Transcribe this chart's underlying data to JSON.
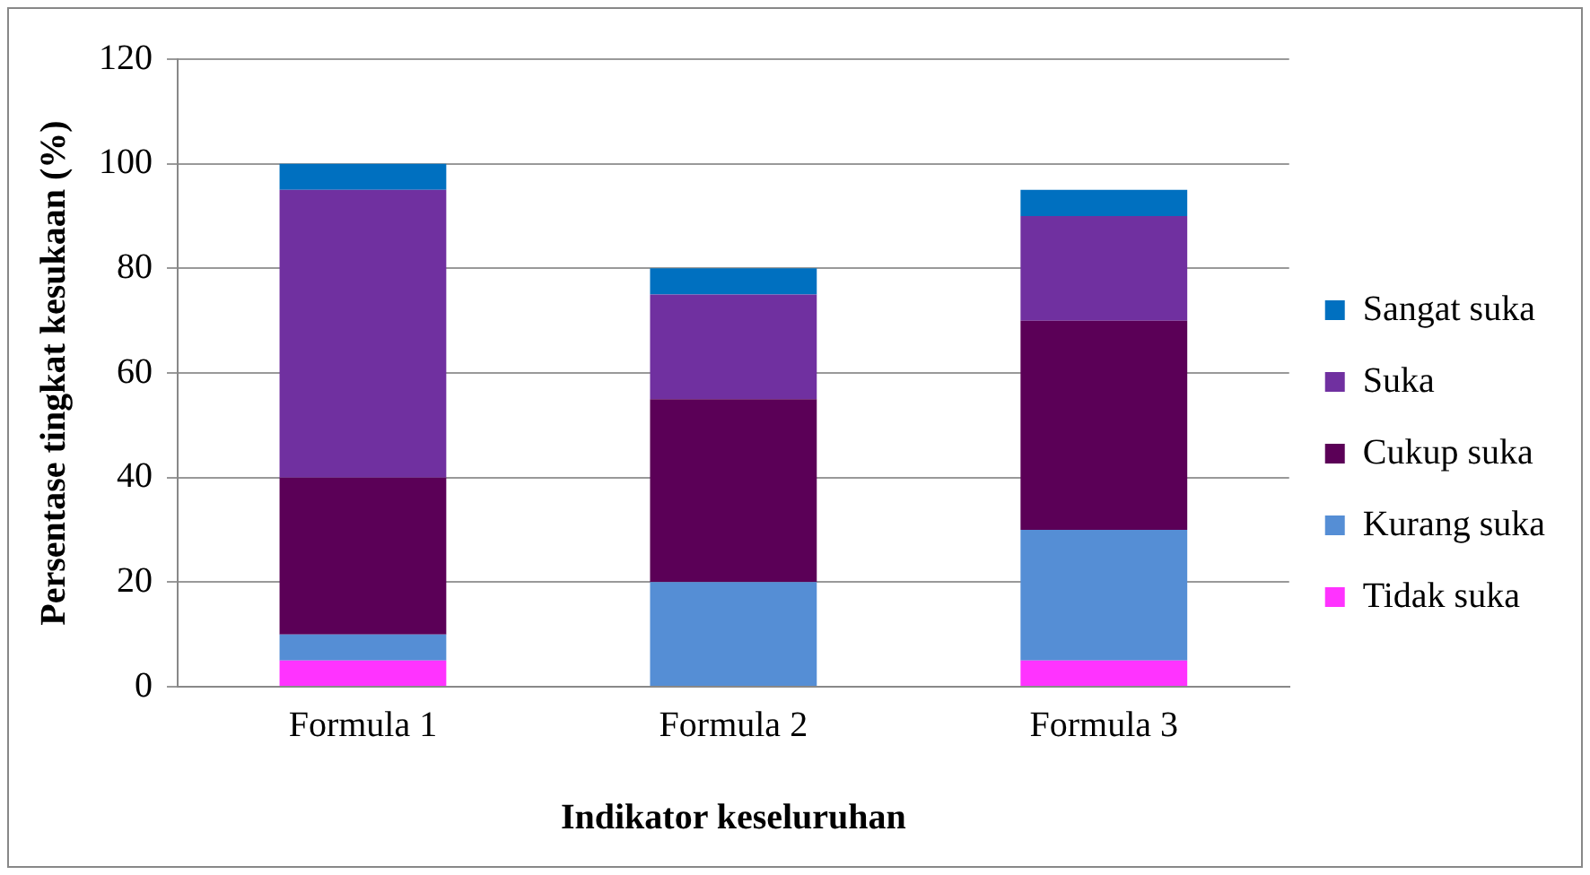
{
  "chart_data": {
    "type": "bar",
    "stacked": true,
    "xlabel": "Indikator keseluruhan",
    "ylabel": "Persentase tingkat kesukaan (%)",
    "categories": [
      "Formula 1",
      "Formula 2",
      "Formula 3"
    ],
    "series": [
      {
        "name": "Tidak suka",
        "color": "#ff33ff",
        "values": [
          5,
          0,
          5
        ]
      },
      {
        "name": "Kurang suka",
        "color": "#558ed5",
        "values": [
          5,
          20,
          25
        ]
      },
      {
        "name": "Cukup suka",
        "color": "#5b0057",
        "values": [
          30,
          35,
          40
        ]
      },
      {
        "name": "Suka",
        "color": "#7030a0",
        "values": [
          55,
          20,
          20
        ]
      },
      {
        "name": "Sangat suka",
        "color": "#0070c0",
        "values": [
          5,
          5,
          5
        ]
      }
    ],
    "ylim": [
      0,
      120
    ],
    "yticks": [
      0,
      20,
      40,
      60,
      80,
      100,
      120
    ],
    "grid": "y",
    "legend": "right"
  }
}
